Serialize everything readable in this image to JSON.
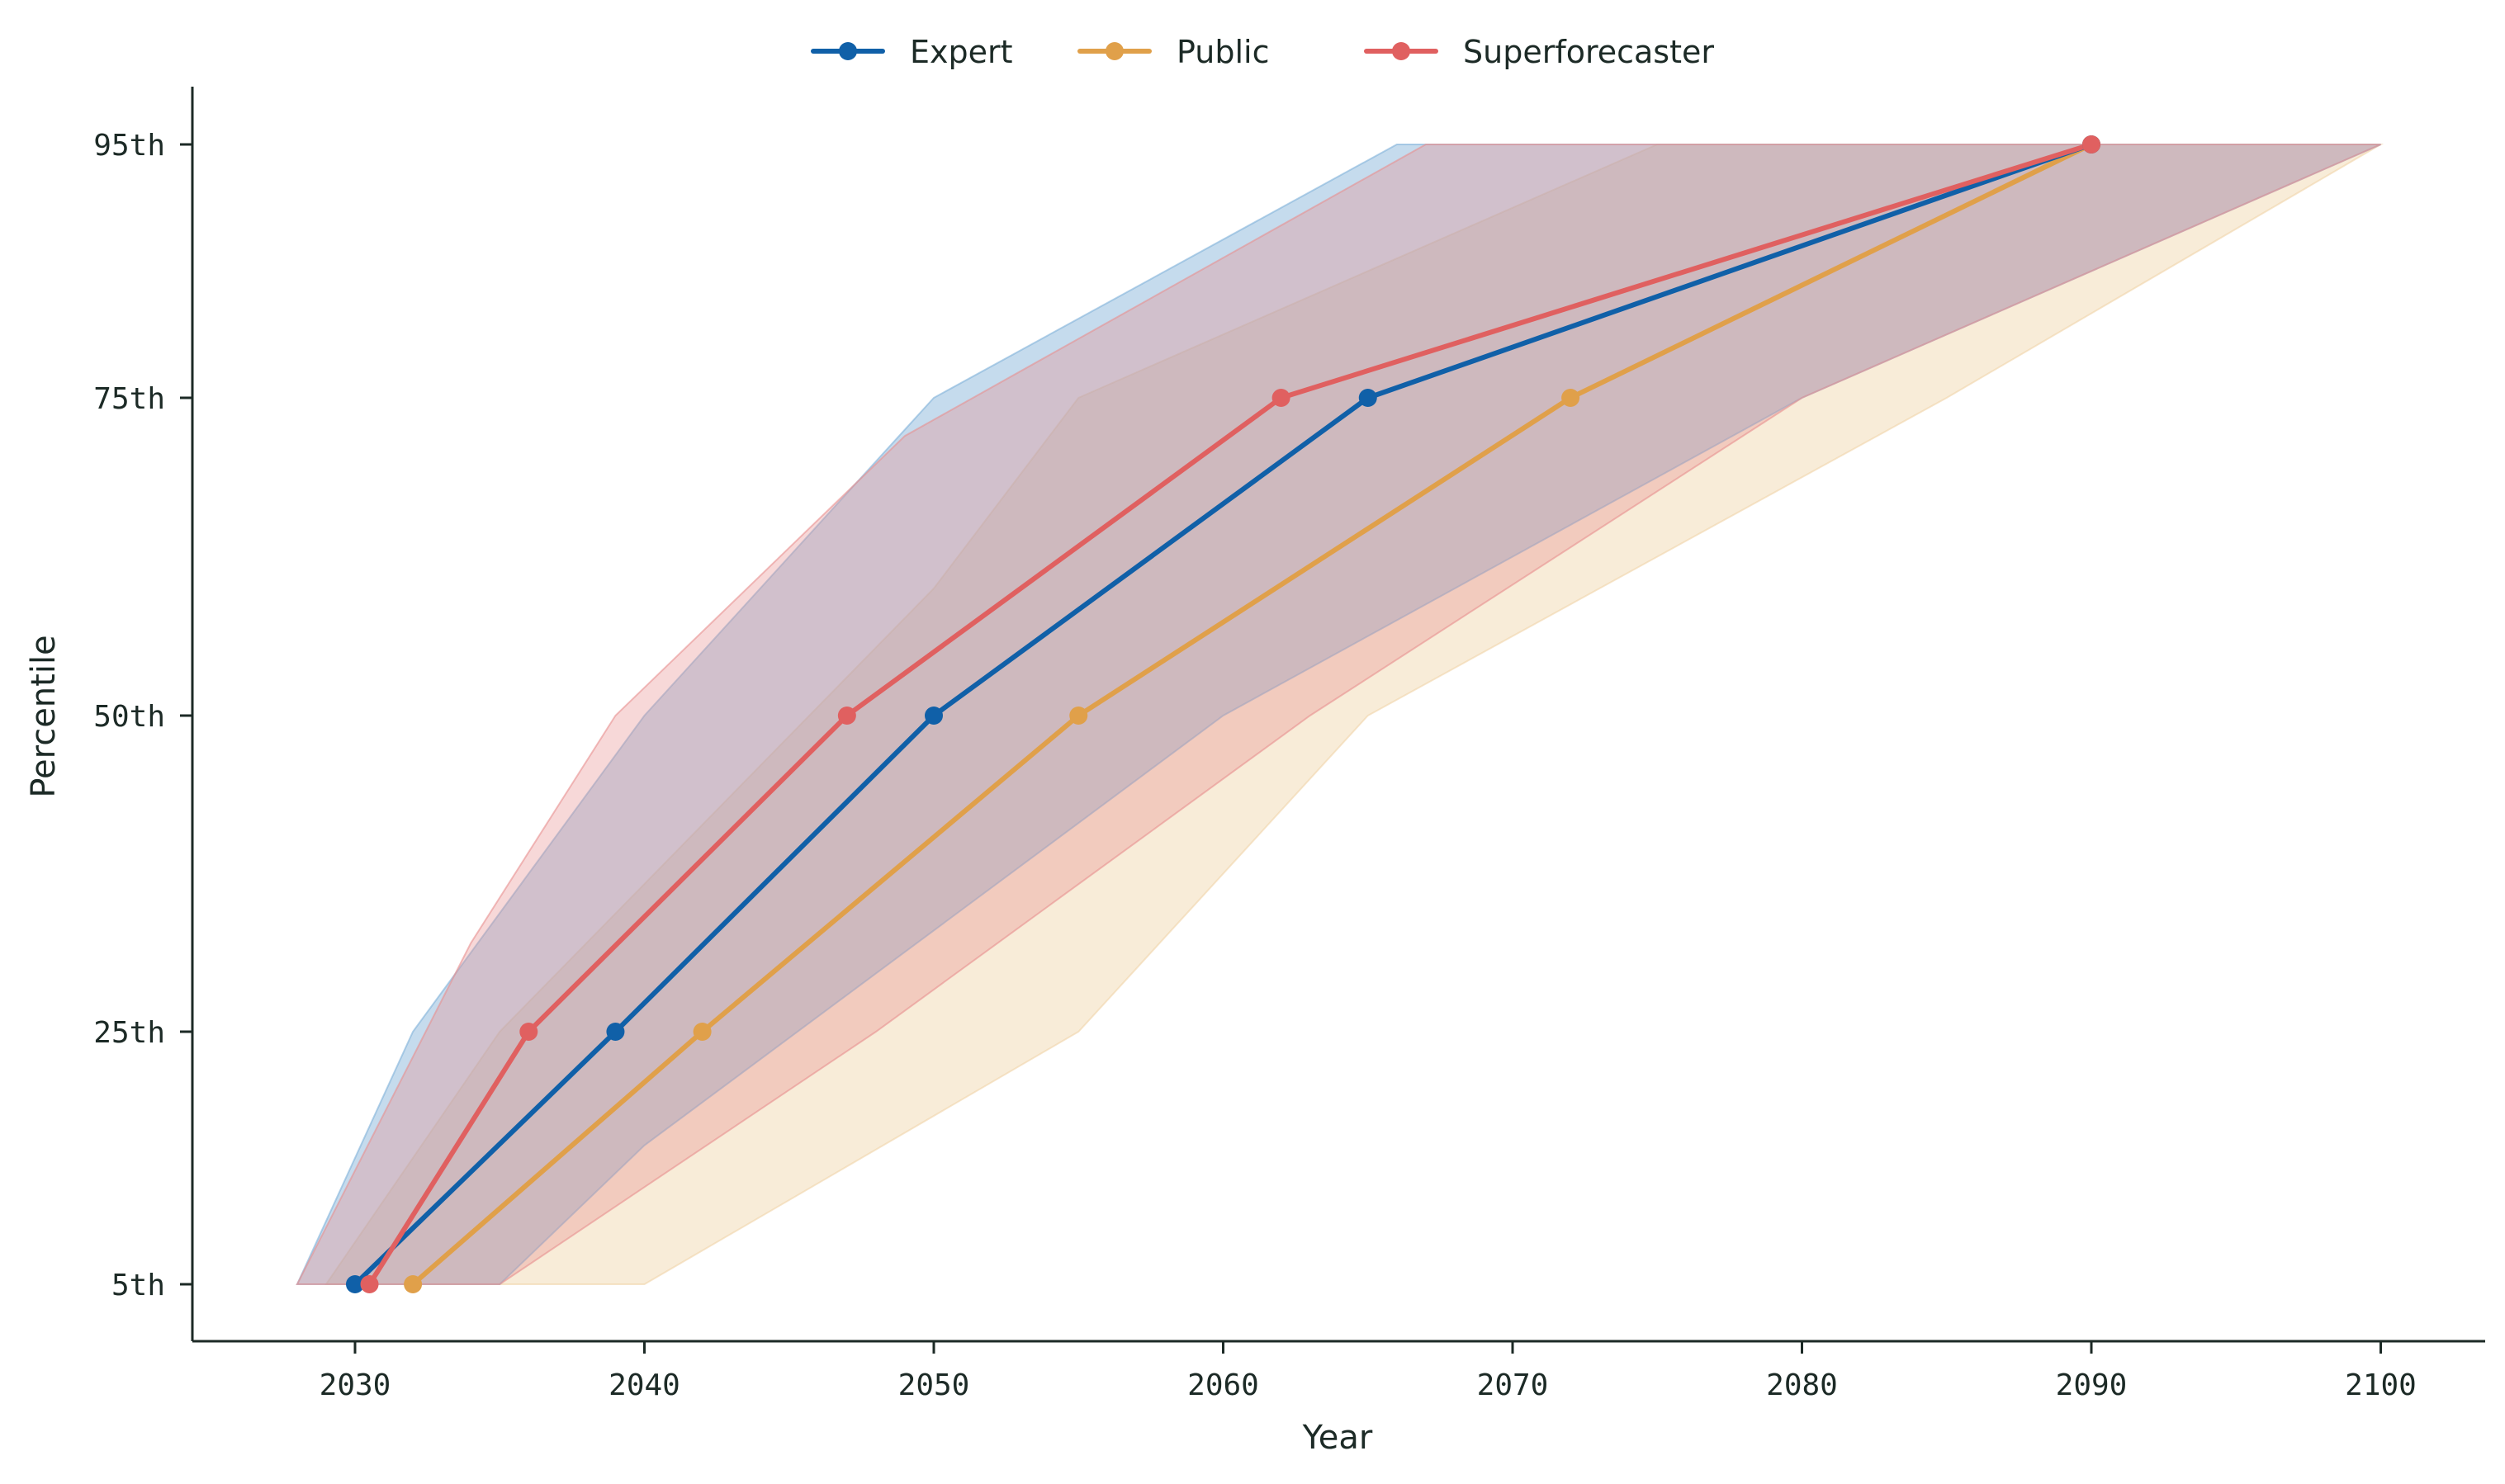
{
  "chart_data": {
    "type": "line",
    "title": "",
    "xlabel": "Year",
    "ylabel": "Percentile",
    "xlim": [
      2024.5,
      2103.5
    ],
    "x_ticks": [
      2030,
      2040,
      2050,
      2060,
      2070,
      2080,
      2090,
      2100
    ],
    "x_tick_labels": [
      "2030",
      "2040",
      "2050",
      "2060",
      "2070",
      "2080",
      "2090",
      "2100"
    ],
    "y_ticks": [
      5,
      25,
      50,
      75,
      95
    ],
    "y_tick_labels": [
      "5th",
      "25th",
      "50th",
      "75th",
      "95th"
    ],
    "ylim": [
      4,
      100
    ],
    "grid": false,
    "legend_position": "top-center",
    "series": [
      {
        "name": "Expert",
        "color": "#1060a8",
        "points": [
          [
            2030,
            5
          ],
          [
            2039,
            25
          ],
          [
            2050,
            50
          ],
          [
            2065,
            75
          ],
          [
            2090,
            95
          ]
        ],
        "band_upper": [
          [
            2028,
            5
          ],
          [
            2032,
            25
          ],
          [
            2040,
            50
          ],
          [
            2050,
            75
          ],
          [
            2066,
            95
          ],
          [
            2100,
            95
          ]
        ],
        "band_lower": [
          [
            2028,
            5
          ],
          [
            2035,
            5
          ],
          [
            2040,
            16
          ],
          [
            2060,
            50
          ],
          [
            2080,
            75
          ],
          [
            2100,
            95
          ]
        ]
      },
      {
        "name": "Public",
        "color": "#e0a04a",
        "points": [
          [
            2032,
            5
          ],
          [
            2042,
            25
          ],
          [
            2055,
            50
          ],
          [
            2072,
            75
          ],
          [
            2090,
            95
          ]
        ],
        "band_upper": [
          [
            2029,
            5
          ],
          [
            2035,
            25
          ],
          [
            2050,
            60
          ],
          [
            2055,
            75
          ],
          [
            2075,
            95
          ],
          [
            2100,
            95
          ]
        ],
        "band_lower": [
          [
            2029,
            5
          ],
          [
            2040,
            5
          ],
          [
            2055,
            25
          ],
          [
            2065,
            50
          ],
          [
            2085,
            75
          ],
          [
            2100,
            95
          ]
        ]
      },
      {
        "name": "Superforecaster",
        "color": "#e06060",
        "points": [
          [
            2030.5,
            5
          ],
          [
            2036,
            25
          ],
          [
            2047,
            50
          ],
          [
            2062,
            75
          ],
          [
            2090,
            95
          ]
        ],
        "band_upper": [
          [
            2028,
            5
          ],
          [
            2034,
            32
          ],
          [
            2039,
            50
          ],
          [
            2049,
            72
          ],
          [
            2067,
            95
          ],
          [
            2100,
            95
          ]
        ],
        "band_lower": [
          [
            2028,
            5
          ],
          [
            2035,
            5
          ],
          [
            2048,
            25
          ],
          [
            2063,
            50
          ],
          [
            2080,
            75
          ],
          [
            2100,
            95
          ]
        ]
      }
    ]
  }
}
